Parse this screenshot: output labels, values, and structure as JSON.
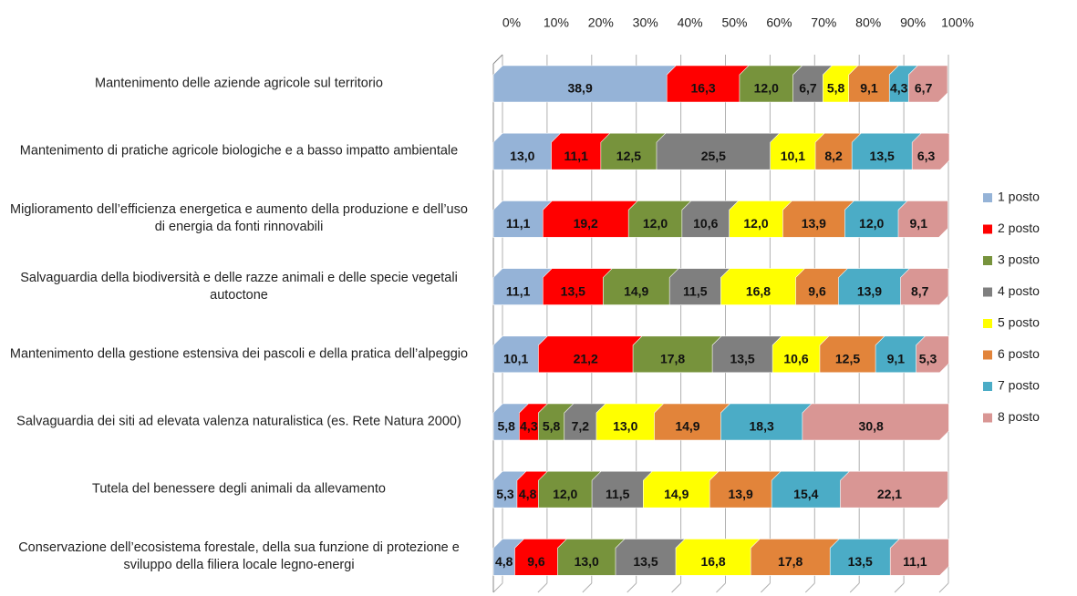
{
  "chart_data": {
    "type": "stacked_bar_horizontal_3d",
    "categories": [
      "Mantenimento delle aziende agricole sul territorio",
      "Mantenimento di pratiche agricole biologiche e a basso impatto ambientale",
      "Miglioramento dell’efficienza energetica e aumento della produzione e dell’uso di energia da fonti rinnovabili",
      "Salvaguardia della biodiversità e delle razze animali e delle specie vegetali autoctone",
      "Mantenimento della gestione estensiva dei pascoli e della pratica dell’alpeggio",
      "Salvaguardia dei siti ad elevata valenza naturalistica (es. Rete Natura 2000)",
      "Tutela del benessere degli animali da allevamento",
      "Conservazione dell’ecosistema forestale, della sua funzione di protezione e sviluppo della filiera locale legno-energi"
    ],
    "series": [
      {
        "name": "1 posto",
        "color": "#95b3d7",
        "values": [
          38.9,
          13.0,
          11.1,
          11.1,
          10.1,
          5.8,
          5.3,
          4.8
        ],
        "value_labels": [
          "38,9",
          "13,0",
          "11,1",
          "11,1",
          "10,1",
          "5,8",
          "5,3",
          "4,8"
        ]
      },
      {
        "name": "2 posto",
        "color": "#ff0000",
        "values": [
          16.3,
          11.1,
          19.2,
          13.5,
          21.2,
          4.3,
          4.8,
          9.6
        ],
        "value_labels": [
          "16,3",
          "11,1",
          "19,2",
          "13,5",
          "21,2",
          "4,3",
          "4,8",
          "9,6"
        ]
      },
      {
        "name": "3 posto",
        "color": "#77933c",
        "values": [
          12.0,
          12.5,
          12.0,
          14.9,
          17.8,
          5.8,
          12.0,
          13.0
        ],
        "value_labels": [
          "12,0",
          "12,5",
          "12,0",
          "14,9",
          "17,8",
          "5,8",
          "12,0",
          "13,0"
        ]
      },
      {
        "name": "4 posto",
        "color": "#7f7f7f",
        "values": [
          6.7,
          25.5,
          10.6,
          11.5,
          13.5,
          7.2,
          11.5,
          13.5
        ],
        "value_labels": [
          "6,7",
          "25,5",
          "10,6",
          "11,5",
          "13,5",
          "7,2",
          "11,5",
          "13,5"
        ]
      },
      {
        "name": "5 posto",
        "color": "#ffff00",
        "values": [
          5.8,
          10.1,
          12.0,
          16.8,
          10.6,
          13.0,
          14.9,
          16.8
        ],
        "value_labels": [
          "5,8",
          "10,1",
          "12,0",
          "16,8",
          "10,6",
          "13,0",
          "14,9",
          "16,8"
        ]
      },
      {
        "name": "6 posto",
        "color": "#e2843a",
        "values": [
          9.1,
          8.2,
          13.9,
          9.6,
          12.5,
          14.9,
          13.9,
          17.8
        ],
        "value_labels": [
          "9,1",
          "8,2",
          "13,9",
          "9,6",
          "12,5",
          "14,9",
          "13,9",
          "17,8"
        ]
      },
      {
        "name": "7 posto",
        "color": "#4bacc6",
        "values": [
          4.3,
          13.5,
          12.0,
          13.9,
          9.1,
          18.3,
          15.4,
          13.5
        ],
        "value_labels": [
          "4,3",
          "13,5",
          "12,0",
          "13,9",
          "9,1",
          "18,3",
          "15,4",
          "13,5"
        ]
      },
      {
        "name": "8 posto",
        "color": "#d99694",
        "values": [
          6.7,
          6.3,
          9.1,
          8.7,
          5.3,
          30.8,
          22.1,
          11.1
        ],
        "value_labels": [
          "6,7",
          "6,3",
          "9,1",
          "8,7",
          "5,3",
          "30,8",
          "22,1",
          "11,1"
        ]
      }
    ],
    "xlim": [
      0,
      100
    ],
    "xticks": [
      {
        "value": 0,
        "label": "0%"
      },
      {
        "value": 10,
        "label": "10%"
      },
      {
        "value": 20,
        "label": "20%"
      },
      {
        "value": 30,
        "label": "30%"
      },
      {
        "value": 40,
        "label": "40%"
      },
      {
        "value": 50,
        "label": "50%"
      },
      {
        "value": 60,
        "label": "60%"
      },
      {
        "value": 70,
        "label": "70%"
      },
      {
        "value": 80,
        "label": "80%"
      },
      {
        "value": 90,
        "label": "90%"
      },
      {
        "value": 100,
        "label": "100%"
      }
    ],
    "grid": true,
    "legend": "right"
  }
}
